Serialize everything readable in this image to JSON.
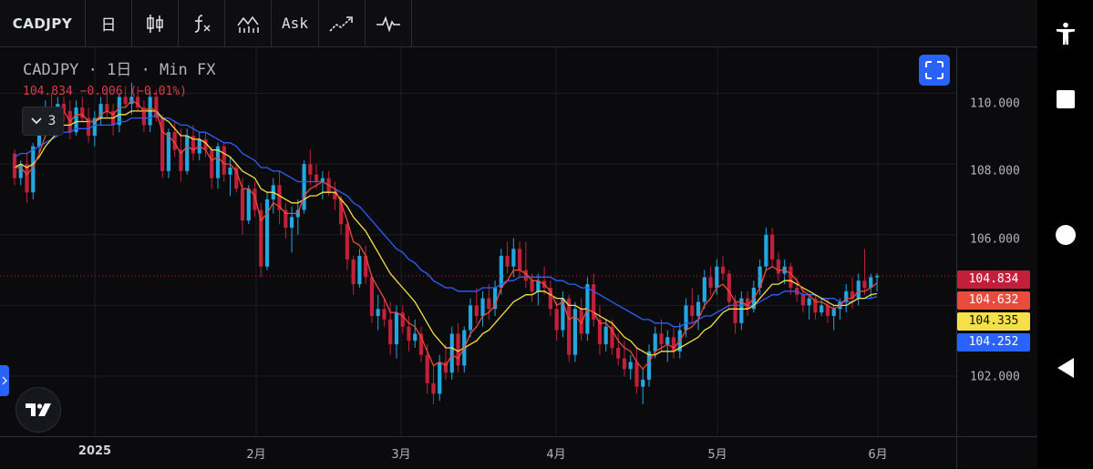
{
  "toolbar": {
    "symbol": "CADJPY",
    "interval": "日",
    "indicators_label": "fx",
    "price_type": "Ask"
  },
  "legend": {
    "title": "CADJPY · 1日 · Min FX",
    "quote": "104.834  −0.006 (−0.01%)",
    "indicator_count": "3"
  },
  "price_axis": {
    "labels": [
      "110.000",
      "108.000",
      "106.000",
      "102.000"
    ],
    "badges": [
      {
        "value": "104.834",
        "bg": "#c2203a",
        "fg": "#ffffff"
      },
      {
        "value": "104.632",
        "bg": "#e94b3c",
        "fg": "#ffffff"
      },
      {
        "value": "104.335",
        "bg": "#f5e04a",
        "fg": "#111111"
      },
      {
        "value": "104.252",
        "bg": "#2962ff",
        "fg": "#ffffff"
      }
    ]
  },
  "time_axis": {
    "labels": [
      "2025",
      "2月",
      "3月",
      "4月",
      "5月",
      "6月"
    ]
  },
  "chart_data": {
    "type": "candlestick",
    "ylim": [
      100.3,
      111.3
    ],
    "current_price": 104.834,
    "up_color": "#22a7e0",
    "down_color": "#c2203a",
    "ma_colors": {
      "fast": "#e94b3c",
      "mid": "#f5e04a",
      "slow": "#2962ff"
    },
    "ma_last": {
      "fast": 104.632,
      "mid": 104.335,
      "slow": 104.252
    },
    "candles": [
      [
        108.3,
        108.4,
        107.4,
        107.6
      ],
      [
        107.6,
        108.1,
        107.4,
        108.0
      ],
      [
        108.0,
        108.3,
        106.9,
        107.2
      ],
      [
        107.2,
        108.6,
        107.0,
        108.5
      ],
      [
        108.5,
        109.4,
        108.3,
        109.2
      ],
      [
        109.2,
        109.8,
        108.9,
        109.6
      ],
      [
        109.6,
        110.0,
        109.1,
        109.4
      ],
      [
        109.4,
        109.9,
        109.0,
        109.7
      ],
      [
        109.7,
        109.9,
        109.2,
        109.5
      ],
      [
        109.5,
        109.8,
        108.7,
        108.9
      ],
      [
        108.9,
        109.8,
        108.8,
        109.6
      ],
      [
        109.6,
        109.9,
        109.2,
        109.3
      ],
      [
        109.3,
        109.6,
        108.6,
        108.8
      ],
      [
        108.8,
        109.5,
        108.5,
        109.3
      ],
      [
        109.3,
        109.9,
        109.1,
        109.7
      ],
      [
        109.7,
        110.1,
        109.3,
        109.5
      ],
      [
        109.5,
        109.7,
        108.8,
        109.1
      ],
      [
        109.1,
        110.0,
        108.9,
        109.9
      ],
      [
        109.9,
        110.2,
        109.6,
        109.7
      ],
      [
        109.7,
        110.3,
        109.4,
        109.9
      ],
      [
        109.9,
        110.2,
        109.5,
        109.6
      ],
      [
        109.6,
        109.8,
        108.9,
        109.1
      ],
      [
        109.1,
        110.1,
        108.9,
        109.9
      ],
      [
        109.9,
        110.1,
        109.2,
        109.3
      ],
      [
        109.3,
        109.4,
        107.6,
        107.8
      ],
      [
        107.8,
        109.0,
        107.6,
        108.9
      ],
      [
        108.9,
        109.2,
        108.2,
        108.4
      ],
      [
        108.4,
        109.0,
        107.5,
        107.8
      ],
      [
        107.8,
        109.0,
        107.7,
        108.8
      ],
      [
        108.8,
        109.1,
        108.1,
        108.3
      ],
      [
        108.3,
        108.9,
        108.1,
        108.7
      ],
      [
        108.7,
        108.9,
        108.2,
        108.4
      ],
      [
        108.4,
        108.5,
        107.3,
        107.6
      ],
      [
        107.6,
        108.6,
        107.3,
        108.5
      ],
      [
        108.5,
        108.6,
        107.5,
        107.7
      ],
      [
        107.7,
        108.2,
        107.1,
        107.9
      ],
      [
        107.9,
        108.0,
        107.2,
        107.3
      ],
      [
        107.3,
        107.6,
        106.0,
        106.4
      ],
      [
        106.4,
        107.4,
        106.3,
        107.3
      ],
      [
        107.3,
        107.5,
        106.5,
        106.7
      ],
      [
        106.7,
        106.9,
        104.8,
        105.1
      ],
      [
        105.1,
        107.2,
        105.0,
        107.0
      ],
      [
        107.0,
        107.6,
        106.6,
        107.4
      ],
      [
        107.4,
        107.8,
        106.3,
        106.7
      ],
      [
        106.7,
        106.9,
        105.9,
        106.2
      ],
      [
        106.2,
        106.8,
        105.5,
        106.5
      ],
      [
        106.5,
        107.0,
        106.0,
        106.7
      ],
      [
        106.7,
        108.1,
        106.6,
        108.0
      ],
      [
        108.0,
        108.4,
        107.4,
        107.7
      ],
      [
        107.7,
        108.0,
        107.3,
        107.5
      ],
      [
        107.5,
        107.8,
        107.0,
        107.6
      ],
      [
        107.6,
        107.8,
        107.1,
        107.2
      ],
      [
        107.2,
        107.5,
        106.7,
        107.0
      ],
      [
        107.0,
        107.1,
        106.0,
        106.3
      ],
      [
        106.3,
        106.4,
        105.0,
        105.3
      ],
      [
        105.3,
        105.4,
        104.3,
        104.6
      ],
      [
        104.6,
        105.6,
        104.5,
        105.4
      ],
      [
        105.4,
        105.7,
        104.6,
        104.8
      ],
      [
        104.8,
        104.9,
        103.5,
        103.7
      ],
      [
        103.7,
        104.3,
        103.3,
        103.9
      ],
      [
        103.9,
        104.2,
        103.4,
        103.6
      ],
      [
        103.6,
        104.1,
        102.6,
        102.9
      ],
      [
        102.9,
        104.0,
        102.5,
        103.8
      ],
      [
        103.8,
        104.0,
        103.2,
        103.4
      ],
      [
        103.4,
        103.7,
        102.7,
        103.0
      ],
      [
        103.0,
        103.6,
        102.8,
        103.2
      ],
      [
        103.2,
        103.4,
        102.4,
        102.6
      ],
      [
        102.6,
        102.9,
        101.5,
        101.8
      ],
      [
        101.8,
        102.3,
        101.2,
        101.5
      ],
      [
        101.5,
        102.6,
        101.3,
        102.4
      ],
      [
        102.4,
        102.9,
        101.9,
        102.1
      ],
      [
        102.1,
        103.4,
        101.9,
        103.2
      ],
      [
        103.2,
        103.5,
        102.1,
        102.3
      ],
      [
        102.3,
        103.4,
        102.1,
        103.3
      ],
      [
        103.3,
        104.2,
        103.1,
        104.0
      ],
      [
        104.0,
        104.5,
        103.5,
        103.7
      ],
      [
        103.7,
        104.4,
        103.4,
        104.2
      ],
      [
        104.2,
        104.6,
        103.6,
        103.9
      ],
      [
        103.9,
        104.7,
        103.7,
        104.5
      ],
      [
        104.5,
        105.6,
        104.3,
        105.4
      ],
      [
        105.4,
        105.8,
        104.9,
        105.1
      ],
      [
        105.1,
        105.9,
        104.8,
        105.6
      ],
      [
        105.6,
        105.8,
        104.8,
        105.0
      ],
      [
        105.0,
        105.8,
        104.5,
        104.7
      ],
      [
        104.7,
        104.9,
        104.1,
        104.4
      ],
      [
        104.4,
        104.9,
        104.0,
        104.7
      ],
      [
        104.7,
        105.1,
        104.3,
        104.5
      ],
      [
        104.5,
        104.7,
        103.7,
        103.9
      ],
      [
        103.9,
        104.1,
        103.0,
        103.3
      ],
      [
        103.3,
        104.4,
        103.1,
        104.2
      ],
      [
        104.2,
        104.3,
        102.4,
        102.6
      ],
      [
        102.6,
        104.1,
        102.4,
        103.9
      ],
      [
        103.9,
        104.2,
        103.0,
        103.2
      ],
      [
        103.2,
        104.8,
        103.0,
        104.6
      ],
      [
        104.6,
        104.9,
        103.4,
        103.6
      ],
      [
        103.6,
        104.0,
        102.6,
        102.9
      ],
      [
        102.9,
        103.6,
        102.7,
        103.4
      ],
      [
        103.4,
        103.6,
        102.6,
        102.8
      ],
      [
        102.8,
        103.2,
        102.3,
        102.5
      ],
      [
        102.5,
        103.0,
        102.0,
        102.2
      ],
      [
        102.2,
        102.6,
        101.9,
        102.4
      ],
      [
        102.4,
        102.8,
        101.5,
        101.7
      ],
      [
        101.7,
        102.2,
        101.2,
        101.9
      ],
      [
        101.9,
        102.9,
        101.7,
        102.7
      ],
      [
        102.7,
        103.4,
        102.5,
        103.2
      ],
      [
        103.2,
        103.6,
        102.7,
        102.9
      ],
      [
        102.9,
        103.3,
        102.4,
        103.1
      ],
      [
        103.1,
        103.4,
        102.5,
        102.7
      ],
      [
        102.7,
        103.5,
        102.5,
        103.3
      ],
      [
        103.3,
        104.2,
        103.1,
        104.0
      ],
      [
        104.0,
        104.5,
        103.5,
        103.7
      ],
      [
        103.7,
        104.3,
        103.3,
        104.1
      ],
      [
        104.1,
        105.0,
        103.9,
        104.8
      ],
      [
        104.8,
        105.1,
        104.3,
        104.5
      ],
      [
        104.5,
        105.3,
        104.3,
        105.1
      ],
      [
        105.1,
        105.4,
        104.7,
        104.9
      ],
      [
        104.9,
        105.0,
        103.9,
        104.1
      ],
      [
        104.1,
        104.3,
        103.2,
        103.5
      ],
      [
        103.5,
        104.4,
        103.3,
        104.2
      ],
      [
        104.2,
        104.4,
        103.7,
        103.9
      ],
      [
        103.9,
        104.7,
        103.8,
        104.5
      ],
      [
        104.5,
        105.3,
        104.3,
        105.1
      ],
      [
        105.1,
        106.2,
        105.0,
        106.0
      ],
      [
        106.0,
        106.2,
        105.1,
        105.3
      ],
      [
        105.3,
        105.5,
        104.7,
        104.9
      ],
      [
        104.9,
        105.3,
        104.6,
        105.1
      ],
      [
        105.1,
        105.2,
        104.3,
        104.5
      ],
      [
        104.5,
        104.8,
        104.1,
        104.3
      ],
      [
        104.3,
        104.5,
        103.8,
        104.0
      ],
      [
        104.0,
        104.3,
        103.6,
        104.2
      ],
      [
        104.2,
        104.3,
        103.6,
        103.8
      ],
      [
        103.8,
        104.2,
        103.7,
        104.0
      ],
      [
        104.0,
        104.2,
        103.5,
        103.7
      ],
      [
        103.7,
        104.0,
        103.3,
        103.9
      ],
      [
        103.9,
        104.2,
        103.6,
        104.1
      ],
      [
        104.1,
        104.6,
        103.8,
        104.4
      ],
      [
        104.4,
        104.8,
        103.9,
        104.2
      ],
      [
        104.2,
        104.9,
        104.0,
        104.7
      ],
      [
        104.7,
        105.6,
        104.3,
        104.5
      ],
      [
        104.5,
        104.9,
        104.2,
        104.8
      ],
      [
        104.8,
        104.9,
        104.4,
        104.834
      ]
    ],
    "ma_fast": [
      107.9,
      107.9,
      107.7,
      107.9,
      108.3,
      108.8,
      109.1,
      109.4,
      109.5,
      109.2,
      109.4,
      109.4,
      109.2,
      109.2,
      109.4,
      109.5,
      109.4,
      109.6,
      109.6,
      109.8,
      109.7,
      109.5,
      109.6,
      109.5,
      108.9,
      108.8,
      108.6,
      108.3,
      108.5,
      108.4,
      108.5,
      108.4,
      108.1,
      108.2,
      108.0,
      108.0,
      107.8,
      107.3,
      107.3,
      107.1,
      106.4,
      106.6,
      106.9,
      106.8,
      106.6,
      106.6,
      106.6,
      107.1,
      107.3,
      107.4,
      107.5,
      107.4,
      107.3,
      106.9,
      106.4,
      105.8,
      105.7,
      105.4,
      104.8,
      104.5,
      104.2,
      103.8,
      103.8,
      103.7,
      103.5,
      103.4,
      103.1,
      102.7,
      102.3,
      102.4,
      102.3,
      102.6,
      102.5,
      102.8,
      103.2,
      103.4,
      103.7,
      103.8,
      104.0,
      104.5,
      104.7,
      105.0,
      105.0,
      104.9,
      104.7,
      104.7,
      104.6,
      104.4,
      104.0,
      104.1,
      103.6,
      103.7,
      103.5,
      103.9,
      103.8,
      103.5,
      103.5,
      103.3,
      103.0,
      102.8,
      102.7,
      102.4,
      102.2,
      102.4,
      102.7,
      102.8,
      102.9,
      102.8,
      103.0,
      103.3,
      103.4,
      103.6,
      104.0,
      104.2,
      104.5,
      104.6,
      104.4,
      104.1,
      104.1,
      104.0,
      104.2,
      104.5,
      105.0,
      105.1,
      105.0,
      105.0,
      104.9,
      104.7,
      104.4,
      104.3,
      104.1,
      104.1,
      104.0,
      103.9,
      104.0,
      104.2,
      104.2,
      104.4,
      104.4,
      104.5,
      104.632
    ],
    "ma_mid": [
      107.9,
      108.0,
      107.9,
      108.0,
      108.2,
      108.5,
      108.7,
      108.9,
      109.1,
      109.1,
      109.2,
      109.2,
      109.2,
      109.2,
      109.3,
      109.3,
      109.3,
      109.4,
      109.4,
      109.5,
      109.5,
      109.5,
      109.5,
      109.5,
      109.3,
      109.2,
      109.0,
      108.8,
      108.8,
      108.7,
      108.7,
      108.6,
      108.4,
      108.4,
      108.3,
      108.2,
      108.0,
      107.8,
      107.7,
      107.6,
      107.3,
      107.2,
      107.2,
      107.1,
      107.0,
      106.9,
      106.9,
      107.0,
      107.1,
      107.1,
      107.2,
      107.2,
      107.2,
      107.0,
      106.8,
      106.5,
      106.3,
      106.1,
      105.8,
      105.5,
      105.2,
      104.9,
      104.7,
      104.5,
      104.3,
      104.1,
      103.8,
      103.5,
      103.2,
      103.0,
      102.8,
      102.8,
      102.7,
      102.8,
      102.9,
      103.0,
      103.2,
      103.3,
      103.5,
      103.7,
      103.9,
      104.1,
      104.2,
      104.3,
      104.3,
      104.4,
      104.4,
      104.3,
      104.2,
      104.2,
      104.0,
      104.0,
      103.9,
      103.9,
      103.8,
      103.7,
      103.6,
      103.5,
      103.3,
      103.1,
      103.0,
      102.8,
      102.7,
      102.6,
      102.6,
      102.7,
      102.7,
      102.7,
      102.8,
      102.9,
      103.0,
      103.1,
      103.3,
      103.4,
      103.6,
      103.8,
      103.9,
      103.9,
      103.9,
      103.9,
      104.0,
      104.2,
      104.4,
      104.6,
      104.6,
      104.7,
      104.7,
      104.6,
      104.5,
      104.4,
      104.3,
      104.2,
      104.1,
      104.0,
      104.0,
      104.0,
      104.1,
      104.2,
      104.2,
      104.3,
      104.335
    ],
    "ma_slow": [
      108.2,
      108.3,
      108.3,
      108.4,
      108.5,
      108.6,
      108.7,
      108.8,
      108.9,
      108.9,
      109.0,
      109.0,
      109.0,
      109.1,
      109.1,
      109.1,
      109.1,
      109.2,
      109.2,
      109.3,
      109.3,
      109.3,
      109.3,
      109.4,
      109.3,
      109.3,
      109.2,
      109.1,
      109.1,
      109.0,
      108.9,
      108.9,
      108.8,
      108.7,
      108.6,
      108.6,
      108.5,
      108.3,
      108.2,
      108.1,
      107.9,
      107.9,
      107.8,
      107.8,
      107.7,
      107.6,
      107.5,
      107.5,
      107.5,
      107.5,
      107.5,
      107.4,
      107.3,
      107.2,
      107.1,
      106.9,
      106.8,
      106.6,
      106.4,
      106.2,
      106.0,
      105.8,
      105.6,
      105.5,
      105.3,
      105.2,
      105.0,
      104.9,
      104.7,
      104.6,
      104.5,
      104.5,
      104.4,
      104.4,
      104.4,
      104.4,
      104.5,
      104.5,
      104.5,
      104.6,
      104.7,
      104.7,
      104.8,
      104.8,
      104.8,
      104.8,
      104.8,
      104.8,
      104.7,
      104.7,
      104.6,
      104.6,
      104.5,
      104.5,
      104.4,
      104.3,
      104.2,
      104.1,
      104.0,
      103.9,
      103.8,
      103.7,
      103.6,
      103.6,
      103.5,
      103.5,
      103.5,
      103.4,
      103.4,
      103.5,
      103.5,
      103.6,
      103.7,
      103.7,
      103.8,
      103.9,
      104.0,
      104.0,
      104.0,
      104.0,
      104.0,
      104.1,
      104.2,
      104.3,
      104.3,
      104.4,
      104.4,
      104.4,
      104.3,
      104.3,
      104.3,
      104.2,
      104.2,
      104.2,
      104.1,
      104.1,
      104.1,
      104.2,
      104.2,
      104.2,
      104.252
    ]
  }
}
